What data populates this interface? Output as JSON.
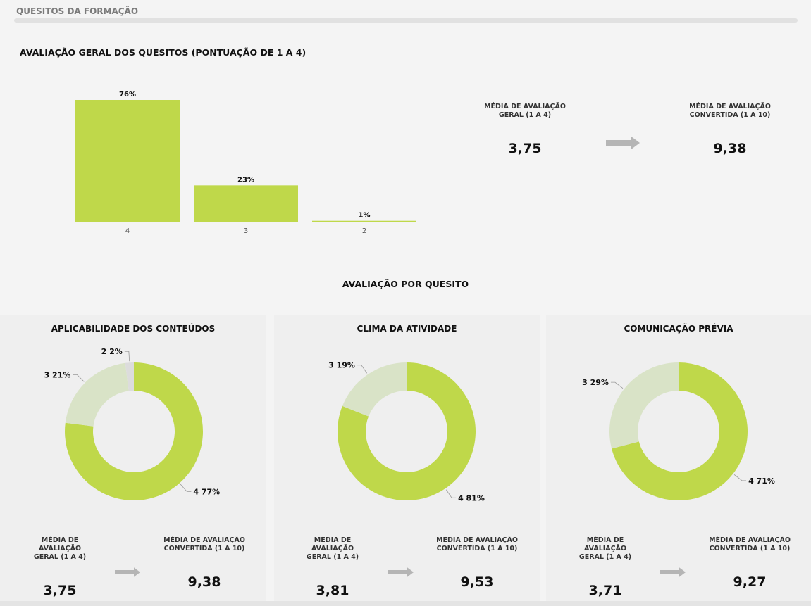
{
  "section": {
    "title": "QUESITOS DA FORMAÇÃO"
  },
  "overall": {
    "title": "AVALIAÇÃO GERAL DOS QUESITOS (PONTUAÇÃO DE 1 A 4)",
    "kpi_general_label": [
      "MÉDIA DE AVALIAÇÃO",
      "GERAL (1 A 4)"
    ],
    "kpi_general_value": "3,75",
    "kpi_converted_label": [
      "MÉDIA DE AVALIAÇÃO",
      "CONVERTIDA (1 A 10)"
    ],
    "kpi_converted_value": "9,38"
  },
  "per_item_heading": "AVALIAÇÃO POR QUESITO",
  "colors": {
    "accent": "#bfd84a",
    "light": "#d9e3c7",
    "secondary": "#dcdcdc",
    "arrow": "#b5b5b5"
  },
  "chart_data": [
    {
      "type": "bar",
      "title": "AVALIAÇÃO GERAL DOS QUESITOS (PONTUAÇÃO DE 1 A 4)",
      "categories": [
        "4",
        "3",
        "2"
      ],
      "values": [
        76,
        23,
        1
      ],
      "labels": [
        "76%",
        "23%",
        "1%"
      ],
      "ylim": [
        0,
        76
      ]
    },
    {
      "type": "pie",
      "title": "APLICABILIDADE DOS CONTEÚDOS",
      "slices": [
        {
          "label": "4",
          "value": 77,
          "text": "4 77%"
        },
        {
          "label": "3",
          "value": 21,
          "text": "3 21%"
        },
        {
          "label": "2",
          "value": 2,
          "text": "2 2%"
        }
      ]
    },
    {
      "type": "pie",
      "title": "CLIMA DA ATIVIDADE",
      "slices": [
        {
          "label": "4",
          "value": 81,
          "text": "4 81%"
        },
        {
          "label": "3",
          "value": 19,
          "text": "3 19%"
        }
      ]
    },
    {
      "type": "pie",
      "title": "COMUNICAÇÃO PRÉVIA",
      "slices": [
        {
          "label": "4",
          "value": 71,
          "text": "4 71%"
        },
        {
          "label": "3",
          "value": 29,
          "text": "3 29%"
        }
      ]
    }
  ],
  "panels": [
    {
      "title": "APLICABILIDADE DOS CONTEÚDOS",
      "kpi_general_label": [
        "MÉDIA DE AVALIAÇÃO",
        "GERAL (1 A 4)"
      ],
      "kpi_general_value": "3,75",
      "kpi_converted_label": [
        "MÉDIA DE AVALIAÇÃO",
        "CONVERTIDA (1 A 10)"
      ],
      "kpi_converted_value": "9,38"
    },
    {
      "title": "CLIMA DA ATIVIDADE",
      "kpi_general_label": [
        "MÉDIA DE AVALIAÇÃO",
        "GERAL (1 A 4)"
      ],
      "kpi_general_value": "3,81",
      "kpi_converted_label": [
        "MÉDIA DE AVALIAÇÃO",
        "CONVERTIDA (1 A 10)"
      ],
      "kpi_converted_value": "9,53"
    },
    {
      "title": "COMUNICAÇÃO PRÉVIA",
      "kpi_general_label": [
        "MÉDIA DE AVALIAÇÃO",
        "GERAL (1 A 4)"
      ],
      "kpi_general_value": "3,71",
      "kpi_converted_label": [
        "MÉDIA DE AVALIAÇÃO",
        "CONVERTIDA (1 A 10)"
      ],
      "kpi_converted_value": "9,27"
    }
  ]
}
